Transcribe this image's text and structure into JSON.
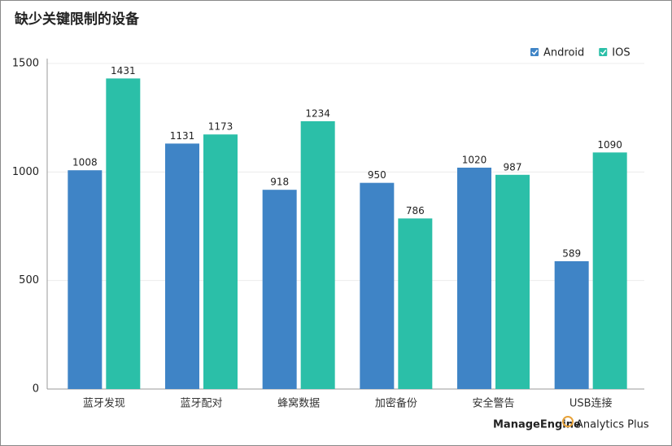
{
  "chart_data": {
    "type": "bar",
    "title": "缺少关键限制的设备",
    "categories": [
      "蓝牙发现",
      "蓝牙配对",
      "蜂窝数据",
      "加密备份",
      "安全警告",
      "USB连接"
    ],
    "series": [
      {
        "name": "Android",
        "color": "#3f84c6",
        "values": [
          1008,
          1131,
          918,
          950,
          1020,
          589
        ]
      },
      {
        "name": "IOS",
        "color": "#2bbfa8",
        "values": [
          1431,
          1173,
          1234,
          786,
          987,
          1090
        ]
      }
    ],
    "ylim": [
      0,
      1500
    ],
    "yticks": [
      0,
      500,
      1000,
      1500
    ],
    "grid": true,
    "legend": "top-right"
  },
  "footer": {
    "brand": "ManageEngine",
    "product": "Analytics Plus"
  }
}
